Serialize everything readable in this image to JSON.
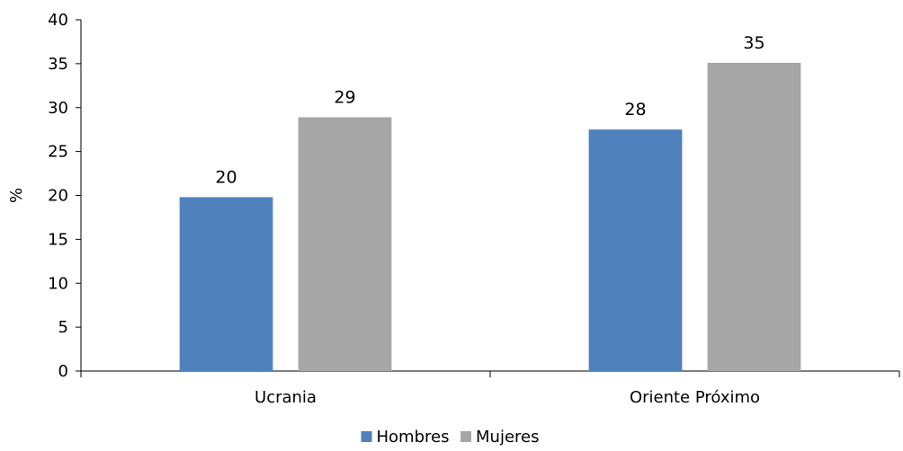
{
  "chart_data": {
    "type": "bar",
    "categories": [
      "Ucrania",
      "Oriente Próximo"
    ],
    "series": [
      {
        "name": "Hombres",
        "values": [
          19.8,
          27.5
        ],
        "labels": [
          "20",
          "28"
        ],
        "color": "#4f81bd"
      },
      {
        "name": "Mujeres",
        "values": [
          28.9,
          35.1
        ],
        "labels": [
          "29",
          "35"
        ],
        "color": "#a6a6a6"
      }
    ],
    "title": "",
    "xlabel": "",
    "ylabel": "%",
    "ylim": [
      0,
      40
    ],
    "yticks": [
      0,
      5,
      10,
      15,
      20,
      25,
      30,
      35,
      40
    ],
    "grid": false,
    "legend_position": "bottom-center"
  }
}
